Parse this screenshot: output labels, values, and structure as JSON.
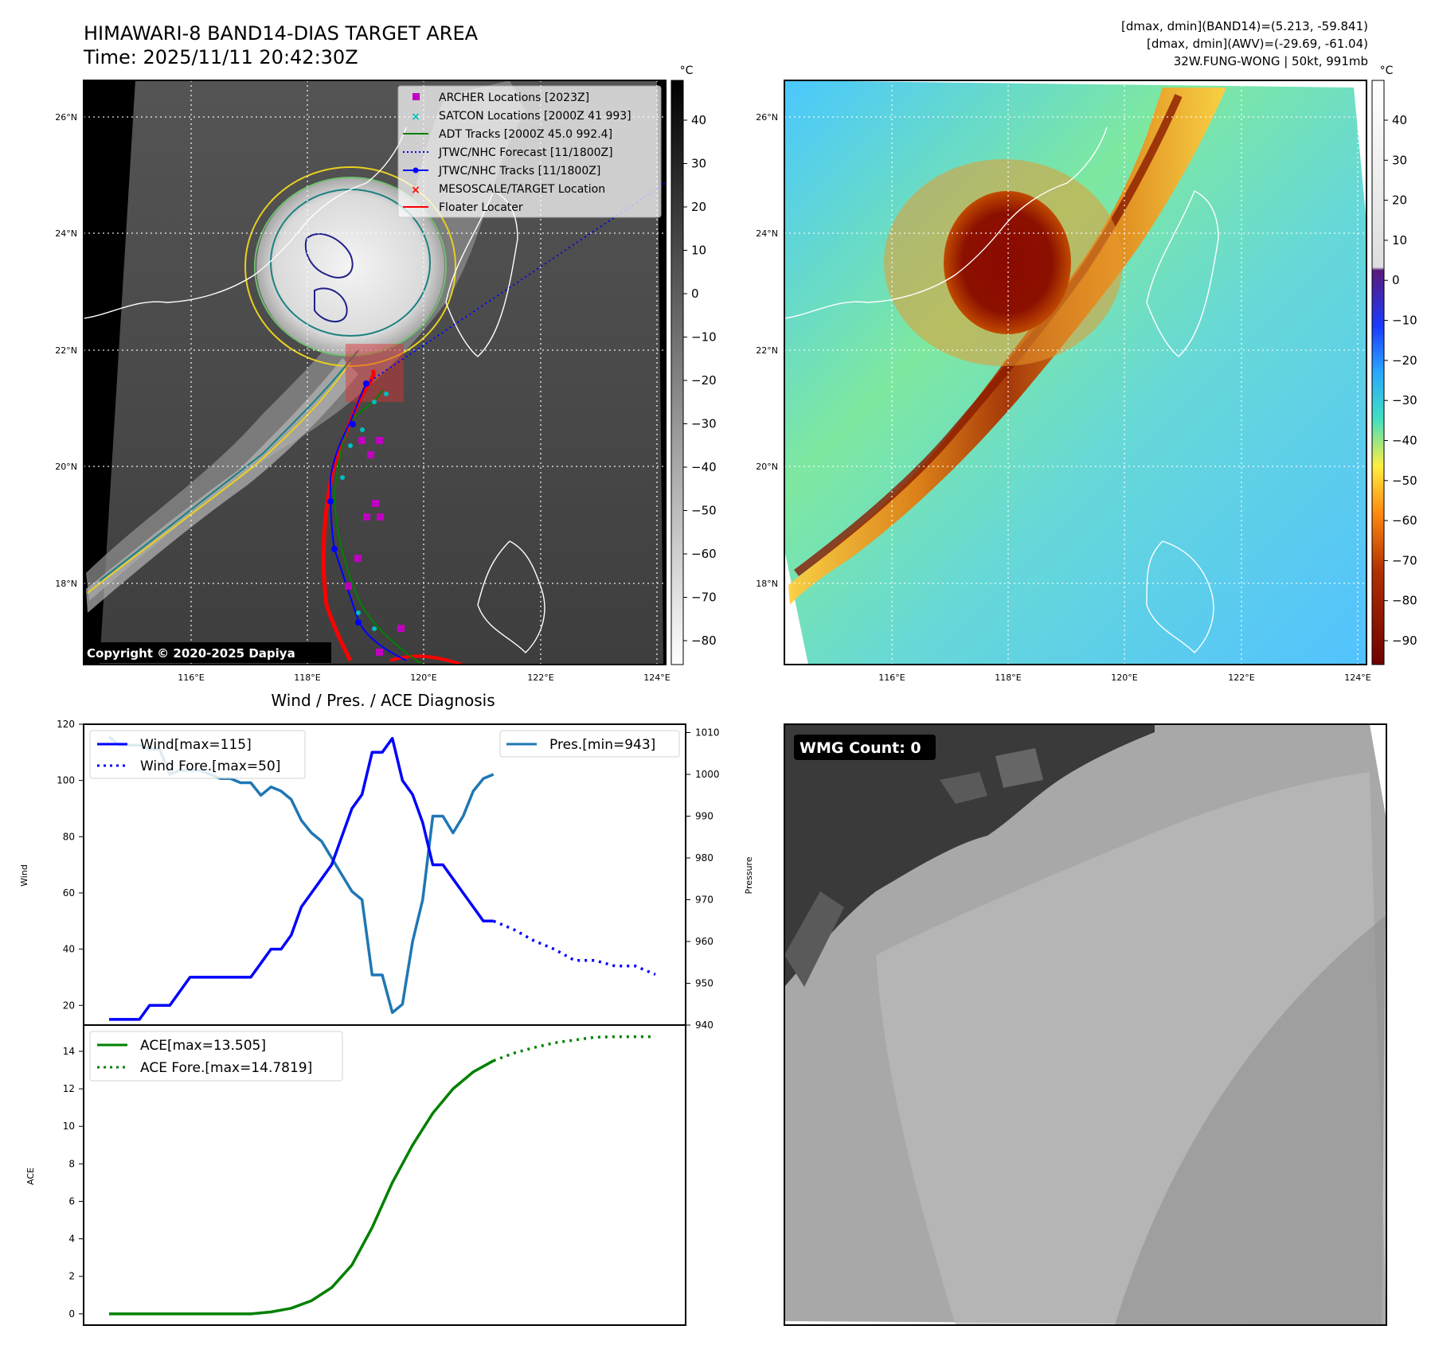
{
  "header": {
    "title": "HIMAWARI-8 BAND14-DIAS TARGET AREA",
    "time": "Time: 2025/11/11 20:42:30Z",
    "dmax_band14": "[dmax, dmin](BAND14)=(5.213, -59.841)",
    "dmax_awv": "[dmax, dmin](AWV)=(-29.69, -61.04)",
    "storm": "32W.FUNG-WONG | 50kt, 991mb"
  },
  "map_ticks": {
    "lat": [
      "26°N",
      "24°N",
      "22°N",
      "20°N",
      "18°N"
    ],
    "lon": [
      "116°E",
      "118°E",
      "120°E",
      "122°E",
      "124°E"
    ]
  },
  "colorbar_left": {
    "unit": "°C",
    "ticks": [
      "40",
      "30",
      "20",
      "10",
      "0",
      "−10",
      "−20",
      "−30",
      "−40",
      "−50",
      "−60",
      "−70",
      "−80"
    ]
  },
  "colorbar_right": {
    "unit": "°C",
    "ticks": [
      "40",
      "30",
      "20",
      "10",
      "0",
      "−10",
      "−20",
      "−30",
      "−40",
      "−50",
      "−60",
      "−70",
      "−80",
      "−90"
    ]
  },
  "legend": [
    {
      "label": "ARCHER Locations [2023Z]",
      "color": "#c000c0",
      "marker": "square"
    },
    {
      "label": "SATCON Locations [2000Z 41 993]",
      "color": "#00bfbf",
      "marker": "x"
    },
    {
      "label": "ADT Tracks [2000Z 45.0 992.4]",
      "color": "#008000",
      "marker": "line"
    },
    {
      "label": "JTWC/NHC Forecast [11/1800Z]",
      "color": "#0000ff",
      "marker": "dotted"
    },
    {
      "label": "JTWC/NHC Tracks [11/1800Z]",
      "color": "#0000ff",
      "marker": "line-dot"
    },
    {
      "label": "MESOSCALE/TARGET Location",
      "color": "#ff0000",
      "marker": "x"
    },
    {
      "label": "Floater Locater",
      "color": "#ff0000",
      "marker": "line"
    }
  ],
  "copyright": "Copyright © 2020-2025 Dapiya",
  "diag_title": "Wind / Pres. / ACE Diagnosis",
  "wmg_badge": "WMG Count: 0",
  "colors": {
    "wind": "#0000ff",
    "pressure": "#1f77b4",
    "ace": "#008000"
  },
  "chart_data": [
    {
      "type": "line",
      "xlabel": "",
      "ylabel": "Wind",
      "ylabel2": "Pressure",
      "ylim": [
        13,
        120
      ],
      "ylim2": [
        940,
        1012
      ],
      "yticks": [
        20,
        40,
        60,
        80,
        100,
        120
      ],
      "yticks2": [
        940,
        950,
        960,
        970,
        980,
        990,
        1000,
        1010
      ],
      "legend_left": "upper-left",
      "legend_right": "upper-right",
      "series": [
        {
          "name": "Wind[max=115]",
          "axis": "left",
          "style": "solid",
          "x": [
            0,
            1,
            2,
            3,
            4,
            5,
            6,
            7,
            8,
            9,
            10,
            11,
            12,
            13,
            14,
            15,
            16,
            17,
            18,
            19,
            20,
            21,
            22,
            23,
            24,
            25,
            26,
            27,
            28,
            29,
            30,
            31,
            32,
            33,
            34,
            35,
            36,
            37,
            38
          ],
          "values": [
            15,
            15,
            15,
            15,
            20,
            20,
            20,
            25,
            30,
            30,
            30,
            30,
            30,
            30,
            30,
            35,
            40,
            40,
            45,
            55,
            60,
            65,
            70,
            80,
            90,
            95,
            110,
            110,
            115,
            100,
            95,
            85,
            70,
            70,
            65,
            60,
            55,
            50,
            50
          ]
        },
        {
          "name": "Wind Fore.[max=50]",
          "axis": "left",
          "style": "dotted",
          "x": [
            38,
            40,
            42,
            44,
            46,
            48,
            50,
            52,
            54
          ],
          "values": [
            50,
            47,
            43,
            40,
            36,
            36,
            34,
            34,
            31
          ]
        },
        {
          "name": "Pres.[min=943]",
          "axis": "right",
          "style": "solid",
          "x": [
            0,
            1,
            2,
            3,
            4,
            5,
            6,
            7,
            8,
            9,
            10,
            11,
            12,
            13,
            14,
            15,
            16,
            17,
            18,
            19,
            20,
            21,
            22,
            23,
            24,
            25,
            26,
            27,
            28,
            29,
            30,
            31,
            32,
            33,
            34,
            35,
            36,
            37,
            38
          ],
          "values": [
            1009,
            1007,
            1007,
            1007,
            1006,
            1006,
            1000,
            1001,
            1001,
            1001,
            1000,
            999,
            999,
            998,
            998,
            995,
            997,
            996,
            994,
            989,
            986,
            984,
            980,
            976,
            972,
            970,
            952,
            952,
            943,
            945,
            960,
            970,
            990,
            990,
            986,
            990,
            996,
            999,
            1000
          ]
        }
      ]
    },
    {
      "type": "line",
      "xlabel": "",
      "ylabel": "ACE",
      "ylim": [
        -0.6,
        15.4
      ],
      "yticks": [
        0,
        2,
        4,
        6,
        8,
        10,
        12,
        14
      ],
      "legend": "upper-left",
      "series": [
        {
          "name": "ACE[max=13.505]",
          "style": "solid",
          "x": [
            0,
            2,
            4,
            6,
            8,
            10,
            12,
            14,
            16,
            18,
            20,
            22,
            24,
            26,
            28,
            30,
            32,
            34,
            36,
            38
          ],
          "values": [
            0,
            0,
            0,
            0,
            0,
            0,
            0,
            0,
            0.1,
            0.3,
            0.7,
            1.4,
            2.6,
            4.6,
            7.0,
            9.0,
            10.7,
            12.0,
            12.9,
            13.5
          ]
        },
        {
          "name": "ACE Fore.[max=14.7819]",
          "style": "dotted",
          "x": [
            38,
            40,
            42,
            44,
            46,
            48,
            50,
            52,
            54
          ],
          "values": [
            13.5,
            13.9,
            14.2,
            14.45,
            14.6,
            14.75,
            14.78,
            14.78,
            14.78
          ]
        }
      ]
    }
  ]
}
